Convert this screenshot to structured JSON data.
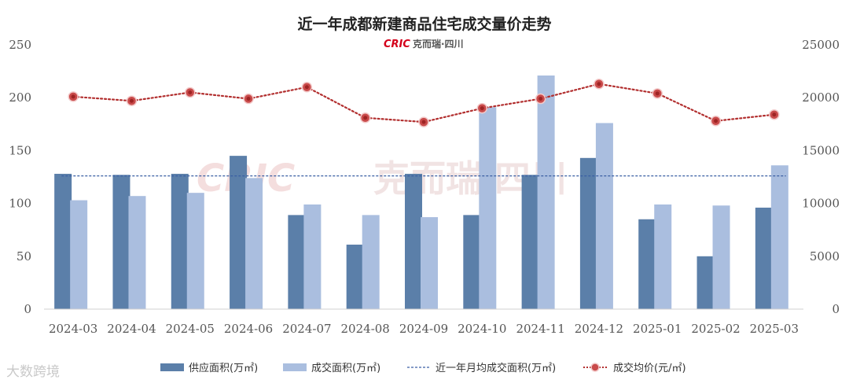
{
  "chart_data": {
    "type": "bar",
    "title": "近一年成都新建商品住宅成交量价走势",
    "categories": [
      "2024-03",
      "2024-04",
      "2024-05",
      "2024-06",
      "2024-07",
      "2024-08",
      "2024-09",
      "2024-10",
      "2024-11",
      "2024-12",
      "2025-01",
      "2025-02",
      "2025-03"
    ],
    "series": [
      {
        "name": "供应面积(万㎡)",
        "kind": "bar",
        "axis": "left",
        "color": "#5b7fa9",
        "values": [
          128,
          127,
          128,
          145,
          89,
          61,
          128,
          89,
          127,
          143,
          85,
          50,
          96
        ]
      },
      {
        "name": "成交面积(万㎡)",
        "kind": "bar",
        "axis": "left",
        "color": "#aabedf",
        "values": [
          103,
          107,
          110,
          124,
          99,
          89,
          87,
          191,
          221,
          176,
          99,
          98,
          136
        ]
      },
      {
        "name": "近一年月均成交面积(万㎡)",
        "kind": "reference-line",
        "axis": "left",
        "color": "#3a5fa3",
        "value": 126
      },
      {
        "name": "成交均价(元/㎡)",
        "kind": "line",
        "axis": "right",
        "color": "#b22f2f",
        "values": [
          20100,
          19700,
          20500,
          19900,
          21000,
          18100,
          17700,
          19000,
          19900,
          21300,
          20400,
          17800,
          18400
        ]
      }
    ],
    "y_left": {
      "range": [
        0,
        250
      ],
      "ticks": [
        "0",
        "50",
        "100",
        "150",
        "200",
        "250"
      ]
    },
    "y_right": {
      "range": [
        0,
        25000
      ],
      "ticks": [
        "0",
        "5000",
        "10000",
        "15000",
        "20000",
        "25000"
      ]
    },
    "grid": false,
    "legend_position": "bottom"
  },
  "branding": {
    "cric": "CRIC",
    "partner": "克而瑞·四川",
    "watermark_cric": "CRIC",
    "watermark_text": "克而瑞 四川",
    "corner_mark": "大数跨境"
  }
}
